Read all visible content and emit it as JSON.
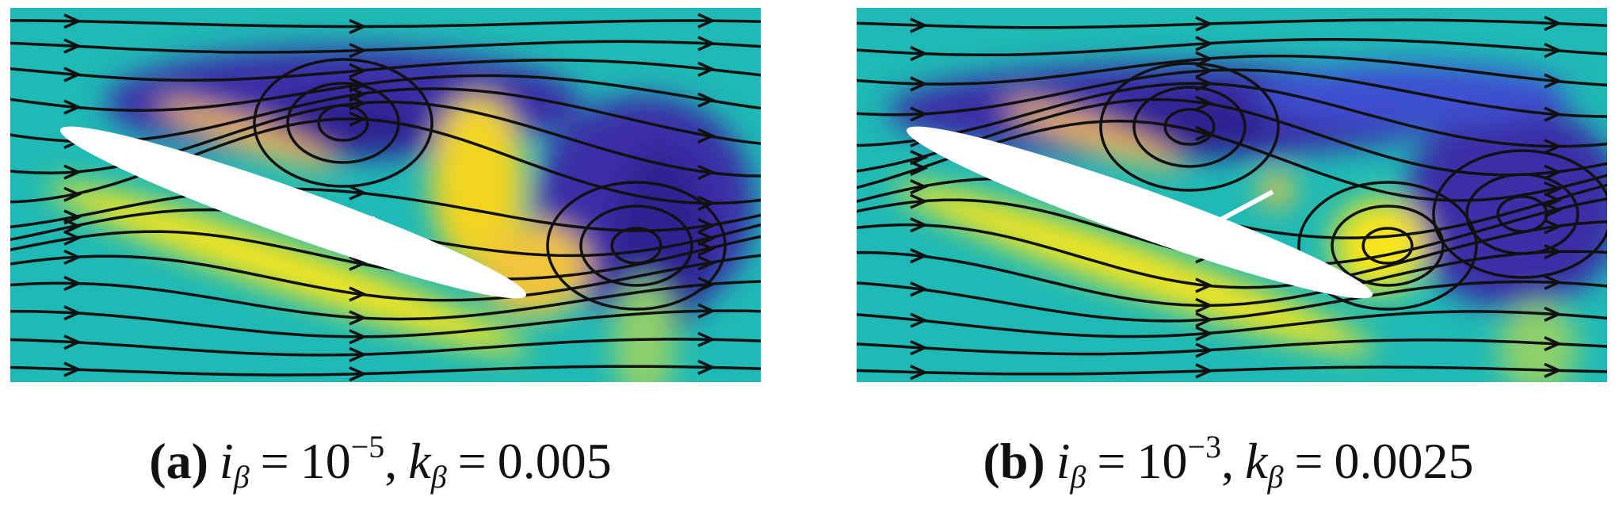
{
  "panels": [
    {
      "caption": [
        "(",
        "a",
        ")",
        "i",
        "β",
        "=",
        "10",
        "−5",
        ",",
        "k",
        "β",
        "=",
        "0.005"
      ]
    },
    {
      "caption": [
        "(",
        "b",
        ")",
        "i",
        "β",
        "=",
        "10",
        "−3",
        ",",
        "k",
        "β",
        "=",
        "0.0025"
      ]
    }
  ]
}
